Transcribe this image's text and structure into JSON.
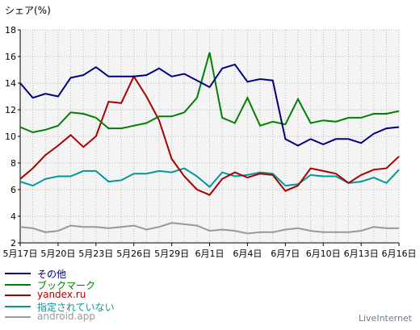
{
  "chart_data": {
    "type": "line",
    "ylabel": "シェア(%)",
    "ylim": [
      2,
      18
    ],
    "yticks": [
      2,
      4,
      6,
      8,
      10,
      12,
      14,
      16,
      18
    ],
    "xticks": [
      "5月17日",
      "5月20日",
      "5月23日",
      "5月26日",
      "5月29日",
      "6月1日",
      "6月4日",
      "6月7日",
      "6月10日",
      "6月13日",
      "6月16日"
    ],
    "grid": true,
    "legend_position": "bottom-left",
    "x": [
      "5月17日",
      "5月18日",
      "5月19日",
      "5月20日",
      "5月21日",
      "5月22日",
      "5月23日",
      "5月24日",
      "5月25日",
      "5月26日",
      "5月27日",
      "5月28日",
      "5月29日",
      "5月30日",
      "5月31日",
      "6月1日",
      "6月2日",
      "6月3日",
      "6月4日",
      "6月5日",
      "6月6日",
      "6月7日",
      "6月8日",
      "6月9日",
      "6月10日",
      "6月11日",
      "6月12日",
      "6月13日",
      "6月14日",
      "6月15日",
      "6月16日"
    ],
    "series": [
      {
        "name": "その他",
        "color": "#000080",
        "values": [
          14.0,
          12.9,
          13.2,
          13.0,
          14.4,
          14.6,
          15.2,
          14.5,
          14.5,
          14.5,
          14.6,
          15.1,
          14.5,
          14.7,
          14.2,
          13.7,
          15.1,
          15.4,
          14.1,
          14.3,
          14.2,
          9.8,
          9.3,
          9.8,
          9.4,
          9.8,
          9.8,
          9.5,
          10.2,
          10.6,
          10.7
        ]
      },
      {
        "name": "ブックマーク",
        "color": "#008000",
        "values": [
          10.7,
          10.3,
          10.5,
          10.8,
          11.8,
          11.7,
          11.4,
          10.6,
          10.6,
          10.8,
          11.0,
          11.5,
          11.5,
          11.8,
          12.9,
          16.3,
          11.4,
          11.0,
          12.9,
          10.8,
          11.1,
          10.9,
          12.8,
          11.0,
          11.2,
          11.1,
          11.4,
          11.4,
          11.7,
          11.7,
          11.9
        ]
      },
      {
        "name": "yandex.ru",
        "color": "#aa0000",
        "values": [
          6.8,
          7.6,
          8.6,
          9.3,
          10.1,
          9.2,
          10.0,
          12.6,
          12.5,
          14.5,
          13.0,
          11.2,
          8.3,
          7.0,
          6.0,
          5.6,
          6.8,
          7.3,
          6.9,
          7.2,
          7.1,
          5.9,
          6.3,
          7.6,
          7.4,
          7.2,
          6.5,
          7.1,
          7.5,
          7.6,
          8.5
        ]
      },
      {
        "name": "指定されていない",
        "color": "#009999",
        "values": [
          6.6,
          6.3,
          6.8,
          7.0,
          7.0,
          7.4,
          7.4,
          6.6,
          6.7,
          7.2,
          7.2,
          7.4,
          7.3,
          7.6,
          7.0,
          6.2,
          7.3,
          7.0,
          7.1,
          7.3,
          7.2,
          6.3,
          6.4,
          7.1,
          7.0,
          7.0,
          6.5,
          6.6,
          6.9,
          6.5,
          7.5
        ]
      },
      {
        "name": "android.app",
        "color": "#999999",
        "values": [
          3.2,
          3.1,
          2.8,
          2.9,
          3.3,
          3.2,
          3.2,
          3.1,
          3.2,
          3.3,
          3.0,
          3.2,
          3.5,
          3.4,
          3.3,
          2.9,
          3.0,
          2.9,
          2.7,
          2.8,
          2.8,
          3.0,
          3.1,
          2.9,
          2.8,
          2.8,
          2.8,
          2.9,
          3.2,
          3.1,
          3.1
        ]
      }
    ]
  },
  "credit": "LiveInternet"
}
